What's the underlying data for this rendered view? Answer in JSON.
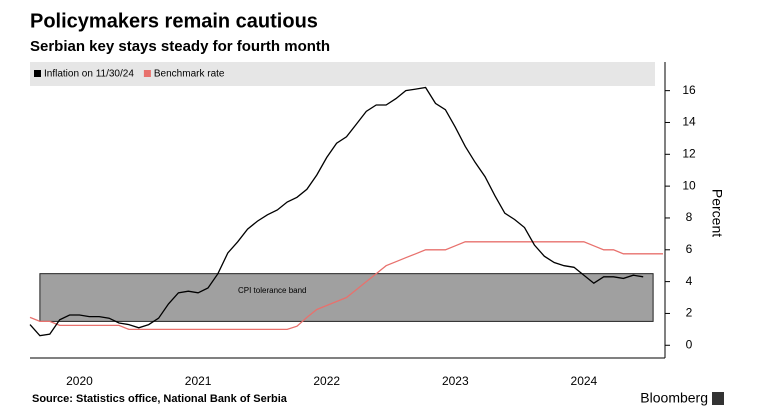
{
  "chart_data": {
    "type": "line",
    "title": "Policymakers remain cautious",
    "subtitle": "Serbian key stays steady for fourth month",
    "y_label": "Percent",
    "source": "Source: Statistics office, National Bank of Serbia",
    "brand": "Bloomberg",
    "categories": [
      null,
      null,
      null,
      null,
      null,
      "2020",
      null,
      null,
      null,
      null,
      null,
      null,
      null,
      null,
      null,
      null,
      null,
      "2021",
      null,
      null,
      null,
      null,
      null,
      null,
      null,
      null,
      null,
      null,
      null,
      null,
      "2022",
      null,
      null,
      null,
      null,
      null,
      null,
      null,
      null,
      null,
      null,
      null,
      null,
      "2023",
      null,
      null,
      null,
      null,
      null,
      null,
      null,
      null,
      null,
      null,
      null,
      null,
      "2024",
      null,
      null,
      null,
      null,
      null,
      null,
      null,
      null
    ],
    "series": [
      {
        "name": "Inflation on 11/30/24",
        "color": "#000000",
        "values": [
          1.3,
          0.6,
          0.7,
          1.6,
          1.9,
          1.9,
          1.8,
          1.8,
          1.7,
          1.4,
          1.3,
          1.1,
          1.3,
          1.7,
          2.6,
          3.3,
          3.4,
          3.3,
          3.6,
          4.5,
          5.8,
          6.5,
          7.3,
          7.8,
          8.2,
          8.5,
          9.0,
          9.3,
          9.8,
          10.7,
          11.8,
          12.7,
          13.1,
          13.9,
          14.7,
          15.1,
          15.1,
          15.5,
          16.0,
          16.1,
          16.2,
          15.2,
          14.8,
          13.7,
          12.5,
          11.5,
          10.6,
          9.4,
          8.3,
          7.9,
          7.4,
          6.3,
          5.6,
          5.2,
          5.0,
          4.9,
          4.4,
          3.9,
          4.3,
          4.3,
          4.2,
          4.4,
          4.3,
          null,
          null
        ]
      },
      {
        "name": "Benchmark rate",
        "color": "#e8716d",
        "values": [
          1.75,
          1.5,
          1.5,
          1.25,
          1.25,
          1.25,
          1.25,
          1.25,
          1.25,
          1.25,
          1.0,
          1.0,
          1.0,
          1.0,
          1.0,
          1.0,
          1.0,
          1.0,
          1.0,
          1.0,
          1.0,
          1.0,
          1.0,
          1.0,
          1.0,
          1.0,
          1.0,
          1.2,
          1.75,
          2.25,
          2.5,
          2.75,
          3.0,
          3.5,
          4.0,
          4.5,
          5.0,
          5.25,
          5.5,
          5.75,
          6.0,
          6.0,
          6.0,
          6.25,
          6.5,
          6.5,
          6.5,
          6.5,
          6.5,
          6.5,
          6.5,
          6.5,
          6.5,
          6.5,
          6.5,
          6.5,
          6.5,
          6.25,
          6.0,
          6.0,
          5.75,
          5.75,
          5.75,
          5.75,
          5.75
        ]
      }
    ],
    "band": {
      "label": "CPI tolerance band",
      "range": [
        1.5,
        4.5
      ],
      "color": "#a0a0a0"
    },
    "ylim": [
      -0.8,
      17.8
    ],
    "yticks": [
      0,
      2,
      4,
      6,
      8,
      10,
      12,
      14,
      16
    ],
    "y_axis_side": "right",
    "legend": "top"
  }
}
